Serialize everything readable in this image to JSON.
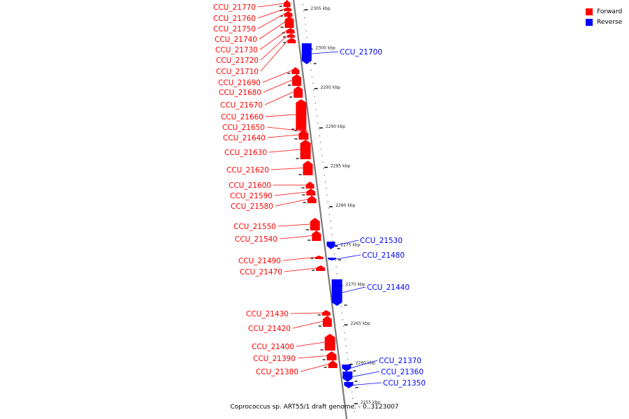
{
  "legend": {
    "items": [
      {
        "label": "Forward",
        "color": "#ff0000"
      },
      {
        "label": "Reverse",
        "color": "#0000ff"
      }
    ]
  },
  "caption": "Coprococcus sp. ART55/1 draft genome. - 0..3123007",
  "axis": {
    "unit": "kbp",
    "ticks": [
      2305,
      2300,
      2295,
      2290,
      2285,
      2280,
      2275,
      2270,
      2265,
      2260,
      2255
    ]
  },
  "genes": [
    {
      "label": "CCU_21770",
      "strand": "forward"
    },
    {
      "label": "CCU_21760",
      "strand": "forward"
    },
    {
      "label": "CCU_21750",
      "strand": "forward"
    },
    {
      "label": "CCU_21740",
      "strand": "forward"
    },
    {
      "label": "CCU_21730",
      "strand": "forward"
    },
    {
      "label": "CCU_21720",
      "strand": "forward"
    },
    {
      "label": "CCU_21710",
      "strand": "forward"
    },
    {
      "label": "CCU_21700",
      "strand": "reverse"
    },
    {
      "label": "CCU_21690",
      "strand": "forward"
    },
    {
      "label": "CCU_21680",
      "strand": "forward"
    },
    {
      "label": "CCU_21670",
      "strand": "forward"
    },
    {
      "label": "CCU_21660",
      "strand": "forward"
    },
    {
      "label": "CCU_21650",
      "strand": "forward"
    },
    {
      "label": "CCU_21640",
      "strand": "forward"
    },
    {
      "label": "CCU_21630",
      "strand": "forward"
    },
    {
      "label": "CCU_21620",
      "strand": "forward"
    },
    {
      "label": "CCU_21600",
      "strand": "forward"
    },
    {
      "label": "CCU_21590",
      "strand": "forward"
    },
    {
      "label": "CCU_21580",
      "strand": "forward"
    },
    {
      "label": "CCU_21550",
      "strand": "forward"
    },
    {
      "label": "CCU_21540",
      "strand": "forward"
    },
    {
      "label": "CCU_21530",
      "strand": "reverse"
    },
    {
      "label": "CCU_21490",
      "strand": "forward"
    },
    {
      "label": "CCU_21480",
      "strand": "reverse"
    },
    {
      "label": "CCU_21470",
      "strand": "forward"
    },
    {
      "label": "CCU_21440",
      "strand": "reverse"
    },
    {
      "label": "CCU_21430",
      "strand": "forward"
    },
    {
      "label": "CCU_21420",
      "strand": "forward"
    },
    {
      "label": "CCU_21400",
      "strand": "forward"
    },
    {
      "label": "CCU_21390",
      "strand": "forward"
    },
    {
      "label": "CCU_21380",
      "strand": "forward"
    },
    {
      "label": "CCU_21370",
      "strand": "reverse"
    },
    {
      "label": "CCU_21360",
      "strand": "reverse"
    },
    {
      "label": "CCU_21350",
      "strand": "reverse"
    }
  ]
}
